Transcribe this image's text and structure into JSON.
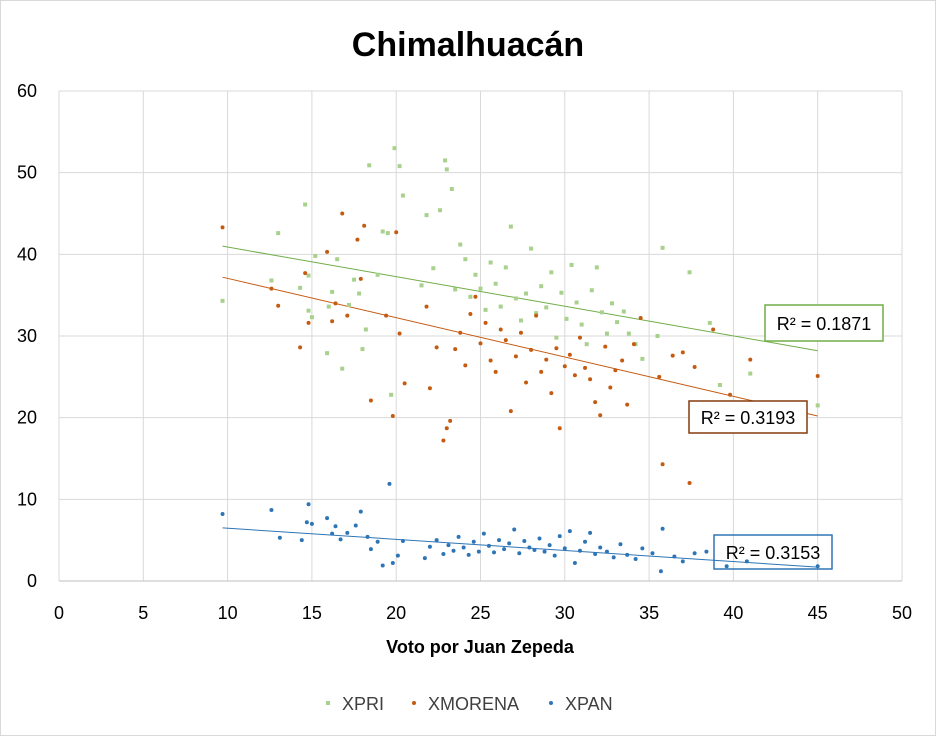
{
  "chart_data": {
    "type": "scatter",
    "title": "Chimalhuacán",
    "xlabel": "Voto por Juan Zepeda",
    "ylabel": "",
    "xlim": [
      0,
      50
    ],
    "ylim": [
      0,
      60
    ],
    "x_ticks": [
      "0",
      "5",
      "10",
      "15",
      "20",
      "25",
      "30",
      "35",
      "40",
      "45",
      "50"
    ],
    "y_ticks": [
      "0",
      "10",
      "20",
      "30",
      "40",
      "50",
      "60"
    ],
    "grid": true,
    "legend_position": "bottom",
    "series": [
      {
        "name": "XPRI",
        "color": "#a9d18e",
        "marker": "square",
        "trendline": {
          "x": [
            9.7,
            45
          ],
          "y": [
            41.0,
            28.2
          ]
        },
        "r2_label": "R² = 0.1871",
        "r2_box_color": "#70ad47",
        "points": [
          [
            9.7,
            34.3
          ],
          [
            12.6,
            36.8
          ],
          [
            13.0,
            42.6
          ],
          [
            14.3,
            35.9
          ],
          [
            14.6,
            46.1
          ],
          [
            14.8,
            37.4
          ],
          [
            14.8,
            33.1
          ],
          [
            15.0,
            32.3
          ],
          [
            15.2,
            39.8
          ],
          [
            15.9,
            27.9
          ],
          [
            16.0,
            33.6
          ],
          [
            16.2,
            35.4
          ],
          [
            16.5,
            39.4
          ],
          [
            16.8,
            26.0
          ],
          [
            17.2,
            33.8
          ],
          [
            17.5,
            36.9
          ],
          [
            17.8,
            35.2
          ],
          [
            18.0,
            28.4
          ],
          [
            18.2,
            30.8
          ],
          [
            18.4,
            50.9
          ],
          [
            18.9,
            37.5
          ],
          [
            19.2,
            42.8
          ],
          [
            19.5,
            42.6
          ],
          [
            19.7,
            22.8
          ],
          [
            19.9,
            53.0
          ],
          [
            20.2,
            50.8
          ],
          [
            20.4,
            47.2
          ],
          [
            21.5,
            36.2
          ],
          [
            21.8,
            44.8
          ],
          [
            22.2,
            38.3
          ],
          [
            22.6,
            45.4
          ],
          [
            22.9,
            51.5
          ],
          [
            23.0,
            50.4
          ],
          [
            23.3,
            48.0
          ],
          [
            23.5,
            35.7
          ],
          [
            23.8,
            41.2
          ],
          [
            24.1,
            39.4
          ],
          [
            24.4,
            34.8
          ],
          [
            24.7,
            37.5
          ],
          [
            25.0,
            35.8
          ],
          [
            25.3,
            33.2
          ],
          [
            25.6,
            39.0
          ],
          [
            25.9,
            36.4
          ],
          [
            26.2,
            33.6
          ],
          [
            26.5,
            38.4
          ],
          [
            26.8,
            43.4
          ],
          [
            27.1,
            34.6
          ],
          [
            27.4,
            31.9
          ],
          [
            27.7,
            35.2
          ],
          [
            28.0,
            40.7
          ],
          [
            28.3,
            32.8
          ],
          [
            28.6,
            36.1
          ],
          [
            28.9,
            33.5
          ],
          [
            29.2,
            37.8
          ],
          [
            29.5,
            29.8
          ],
          [
            29.8,
            35.3
          ],
          [
            30.1,
            32.1
          ],
          [
            30.4,
            38.7
          ],
          [
            30.7,
            34.1
          ],
          [
            31.0,
            31.4
          ],
          [
            31.3,
            29.0
          ],
          [
            31.6,
            35.6
          ],
          [
            31.9,
            38.4
          ],
          [
            32.2,
            32.9
          ],
          [
            32.5,
            30.3
          ],
          [
            32.8,
            34.0
          ],
          [
            33.1,
            31.7
          ],
          [
            33.5,
            33.0
          ],
          [
            33.8,
            30.3
          ],
          [
            34.2,
            29.0
          ],
          [
            34.6,
            27.2
          ],
          [
            35.5,
            30.0
          ],
          [
            35.8,
            40.8
          ],
          [
            37.4,
            37.8
          ],
          [
            38.6,
            31.6
          ],
          [
            39.2,
            24.0
          ],
          [
            41.0,
            25.4
          ],
          [
            45.0,
            21.5
          ]
        ]
      },
      {
        "name": "XMORENA",
        "color": "#c55a11",
        "marker": "circle",
        "trendline": {
          "x": [
            9.7,
            45
          ],
          "y": [
            37.2,
            20.2
          ]
        },
        "r2_label": "R² = 0.3193",
        "r2_box_color": "#843c0c",
        "points": [
          [
            9.7,
            43.3
          ],
          [
            12.6,
            35.8
          ],
          [
            13.0,
            33.7
          ],
          [
            14.3,
            28.6
          ],
          [
            14.6,
            37.7
          ],
          [
            14.8,
            31.6
          ],
          [
            15.9,
            40.3
          ],
          [
            16.2,
            31.8
          ],
          [
            16.4,
            34.0
          ],
          [
            16.8,
            45.0
          ],
          [
            17.1,
            32.5
          ],
          [
            17.7,
            41.8
          ],
          [
            17.9,
            37.0
          ],
          [
            18.1,
            43.5
          ],
          [
            18.5,
            22.1
          ],
          [
            19.4,
            32.5
          ],
          [
            19.8,
            20.2
          ],
          [
            20.0,
            42.7
          ],
          [
            20.2,
            30.3
          ],
          [
            20.5,
            24.2
          ],
          [
            21.8,
            33.6
          ],
          [
            22.0,
            23.6
          ],
          [
            22.4,
            28.6
          ],
          [
            22.8,
            17.2
          ],
          [
            23.0,
            18.7
          ],
          [
            23.2,
            19.6
          ],
          [
            23.5,
            28.4
          ],
          [
            23.8,
            30.4
          ],
          [
            24.1,
            26.4
          ],
          [
            24.4,
            32.7
          ],
          [
            24.7,
            34.8
          ],
          [
            25.0,
            29.1
          ],
          [
            25.3,
            31.6
          ],
          [
            25.6,
            27.0
          ],
          [
            25.9,
            25.6
          ],
          [
            26.2,
            30.8
          ],
          [
            26.5,
            29.5
          ],
          [
            26.8,
            20.8
          ],
          [
            27.1,
            27.5
          ],
          [
            27.4,
            30.4
          ],
          [
            27.7,
            24.3
          ],
          [
            28.0,
            28.3
          ],
          [
            28.3,
            32.5
          ],
          [
            28.6,
            25.6
          ],
          [
            28.9,
            27.1
          ],
          [
            29.2,
            23.0
          ],
          [
            29.5,
            28.5
          ],
          [
            29.7,
            18.7
          ],
          [
            30.0,
            26.3
          ],
          [
            30.3,
            27.7
          ],
          [
            30.6,
            25.2
          ],
          [
            30.9,
            29.8
          ],
          [
            31.2,
            26.1
          ],
          [
            31.5,
            24.7
          ],
          [
            31.8,
            21.9
          ],
          [
            32.1,
            20.3
          ],
          [
            32.4,
            28.7
          ],
          [
            32.7,
            23.7
          ],
          [
            33.0,
            25.8
          ],
          [
            33.4,
            27.0
          ],
          [
            33.7,
            21.6
          ],
          [
            34.1,
            29.0
          ],
          [
            34.5,
            32.2
          ],
          [
            35.6,
            25.0
          ],
          [
            35.8,
            14.3
          ],
          [
            36.4,
            27.6
          ],
          [
            37.0,
            28.0
          ],
          [
            37.4,
            12.0
          ],
          [
            37.7,
            26.2
          ],
          [
            38.8,
            30.8
          ],
          [
            39.8,
            22.8
          ],
          [
            41.0,
            27.1
          ],
          [
            45.0,
            25.1
          ]
        ]
      },
      {
        "name": "XPAN",
        "color": "#2e75b6",
        "marker": "circle",
        "trendline": {
          "x": [
            9.7,
            45
          ],
          "y": [
            6.5,
            1.7
          ]
        },
        "r2_label": "R² = 0.3153",
        "r2_box_color": "#2e75b6",
        "points": [
          [
            9.7,
            8.2
          ],
          [
            12.6,
            8.7
          ],
          [
            13.1,
            5.3
          ],
          [
            14.4,
            5.0
          ],
          [
            14.7,
            7.2
          ],
          [
            14.8,
            9.4
          ],
          [
            15.0,
            7.0
          ],
          [
            15.9,
            7.7
          ],
          [
            16.2,
            5.8
          ],
          [
            16.4,
            6.7
          ],
          [
            16.7,
            5.1
          ],
          [
            17.1,
            5.9
          ],
          [
            17.6,
            6.8
          ],
          [
            17.9,
            8.5
          ],
          [
            18.3,
            5.4
          ],
          [
            18.5,
            3.9
          ],
          [
            18.9,
            4.8
          ],
          [
            19.2,
            1.9
          ],
          [
            19.6,
            11.9
          ],
          [
            19.8,
            2.2
          ],
          [
            20.1,
            3.1
          ],
          [
            20.4,
            4.9
          ],
          [
            21.7,
            2.8
          ],
          [
            22.0,
            4.2
          ],
          [
            22.4,
            5.0
          ],
          [
            22.8,
            3.3
          ],
          [
            23.1,
            4.4
          ],
          [
            23.4,
            3.7
          ],
          [
            23.7,
            5.4
          ],
          [
            24.0,
            4.1
          ],
          [
            24.3,
            3.2
          ],
          [
            24.6,
            4.8
          ],
          [
            24.9,
            3.6
          ],
          [
            25.2,
            5.8
          ],
          [
            25.5,
            4.3
          ],
          [
            25.8,
            3.5
          ],
          [
            26.1,
            5.0
          ],
          [
            26.4,
            3.9
          ],
          [
            26.7,
            4.6
          ],
          [
            27.0,
            6.3
          ],
          [
            27.3,
            3.4
          ],
          [
            27.6,
            4.9
          ],
          [
            27.9,
            4.1
          ],
          [
            28.2,
            3.8
          ],
          [
            28.5,
            5.2
          ],
          [
            28.8,
            3.6
          ],
          [
            29.1,
            4.4
          ],
          [
            29.4,
            3.1
          ],
          [
            29.7,
            5.5
          ],
          [
            30.0,
            4.0
          ],
          [
            30.3,
            6.1
          ],
          [
            30.6,
            2.2
          ],
          [
            30.9,
            3.7
          ],
          [
            31.2,
            4.8
          ],
          [
            31.5,
            5.9
          ],
          [
            31.8,
            3.3
          ],
          [
            32.1,
            4.1
          ],
          [
            32.5,
            3.6
          ],
          [
            32.9,
            2.9
          ],
          [
            33.3,
            4.5
          ],
          [
            33.7,
            3.2
          ],
          [
            34.2,
            2.7
          ],
          [
            34.6,
            4.0
          ],
          [
            35.2,
            3.4
          ],
          [
            35.7,
            1.2
          ],
          [
            35.8,
            6.4
          ],
          [
            36.5,
            3.0
          ],
          [
            37.0,
            2.4
          ],
          [
            37.7,
            3.4
          ],
          [
            38.4,
            3.6
          ],
          [
            39.6,
            1.8
          ],
          [
            40.8,
            2.4
          ],
          [
            45.0,
            1.8
          ]
        ]
      }
    ]
  }
}
